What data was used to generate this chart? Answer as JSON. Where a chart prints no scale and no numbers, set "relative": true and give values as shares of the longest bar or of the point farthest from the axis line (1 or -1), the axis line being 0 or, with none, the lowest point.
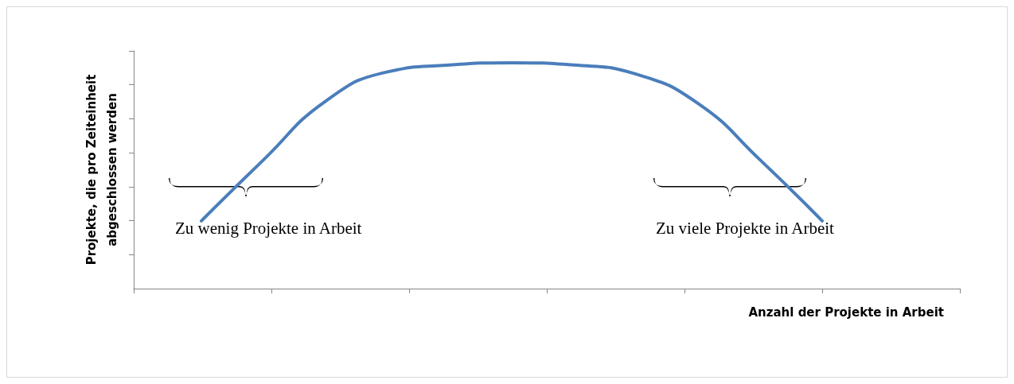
{
  "chart_data": {
    "type": "line",
    "relative": true,
    "xlabel": "Anzahl der Projekte in Arbeit",
    "ylabel": "Projekte, die pro Zeiteinheit abgeschlossen werden",
    "categories": [
      null,
      null,
      null,
      null,
      null,
      null,
      null,
      null,
      null,
      null,
      null
    ],
    "series": [
      {
        "color": "#4a7ebb",
        "values": [
          0.3,
          0.57,
          0.83,
          0.96,
          0.99,
          1.0,
          0.99,
          0.95,
          0.82,
          0.57,
          0.3
        ]
      }
    ],
    "annotations": [
      "Zu wenig Projekte in Arbeit",
      "Zu viele Projekte in Arbeit"
    ],
    "grid": false,
    "marker": "none",
    "line_style": "solid"
  }
}
